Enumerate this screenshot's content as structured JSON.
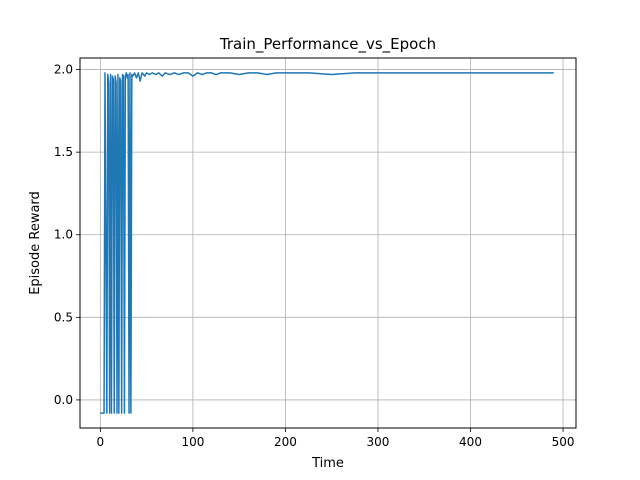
{
  "chart_data": {
    "type": "line",
    "title": "Train_Performance_vs_Epoch",
    "xlabel": "Time",
    "ylabel": "Episode Reward",
    "xlim": [
      -22,
      514
    ],
    "ylim": [
      -0.17,
      2.07
    ],
    "xticks": [
      0,
      100,
      200,
      300,
      400,
      500
    ],
    "xtick_labels": [
      "0",
      "100",
      "200",
      "300",
      "400",
      "500"
    ],
    "yticks": [
      0.0,
      0.5,
      1.0,
      1.5,
      2.0
    ],
    "ytick_labels": [
      "0.0",
      "0.5",
      "1.0",
      "1.5",
      "2.0"
    ],
    "grid": true,
    "series": [
      {
        "name": "",
        "color": "#1f77b4",
        "x": [
          0,
          4,
          5,
          7,
          8,
          9,
          10,
          11,
          12,
          13,
          14,
          15,
          16,
          17,
          18,
          19,
          20,
          21,
          22,
          23,
          24,
          25,
          26,
          27,
          28,
          29,
          30,
          31,
          32,
          33,
          34,
          35,
          37,
          39,
          41,
          43,
          45,
          48,
          50,
          53,
          56,
          60,
          63,
          67,
          70,
          75,
          80,
          85,
          90,
          95,
          100,
          105,
          110,
          115,
          120,
          125,
          130,
          140,
          150,
          160,
          170,
          180,
          190,
          200,
          225,
          250,
          275,
          300,
          325,
          350,
          400,
          420,
          450,
          460,
          490
        ],
        "y": [
          -0.08,
          -0.08,
          1.98,
          -0.08,
          1.97,
          1.92,
          -0.08,
          1.97,
          -0.08,
          1.96,
          1.94,
          -0.08,
          1.96,
          1.92,
          -0.08,
          1.97,
          -0.08,
          1.95,
          1.93,
          -0.08,
          1.97,
          1.96,
          -0.08,
          1.96,
          1.98,
          1.95,
          1.97,
          -0.08,
          1.98,
          -0.08,
          1.97,
          1.96,
          1.98,
          1.95,
          1.98,
          1.93,
          1.98,
          1.96,
          1.98,
          1.97,
          1.98,
          1.97,
          1.98,
          1.96,
          1.98,
          1.97,
          1.98,
          1.97,
          1.98,
          1.98,
          1.96,
          1.98,
          1.97,
          1.98,
          1.98,
          1.97,
          1.98,
          1.98,
          1.97,
          1.98,
          1.98,
          1.97,
          1.98,
          1.98,
          1.98,
          1.97,
          1.98,
          1.98,
          1.98,
          1.98,
          1.98,
          1.98,
          1.98,
          1.98,
          1.98
        ]
      }
    ]
  }
}
